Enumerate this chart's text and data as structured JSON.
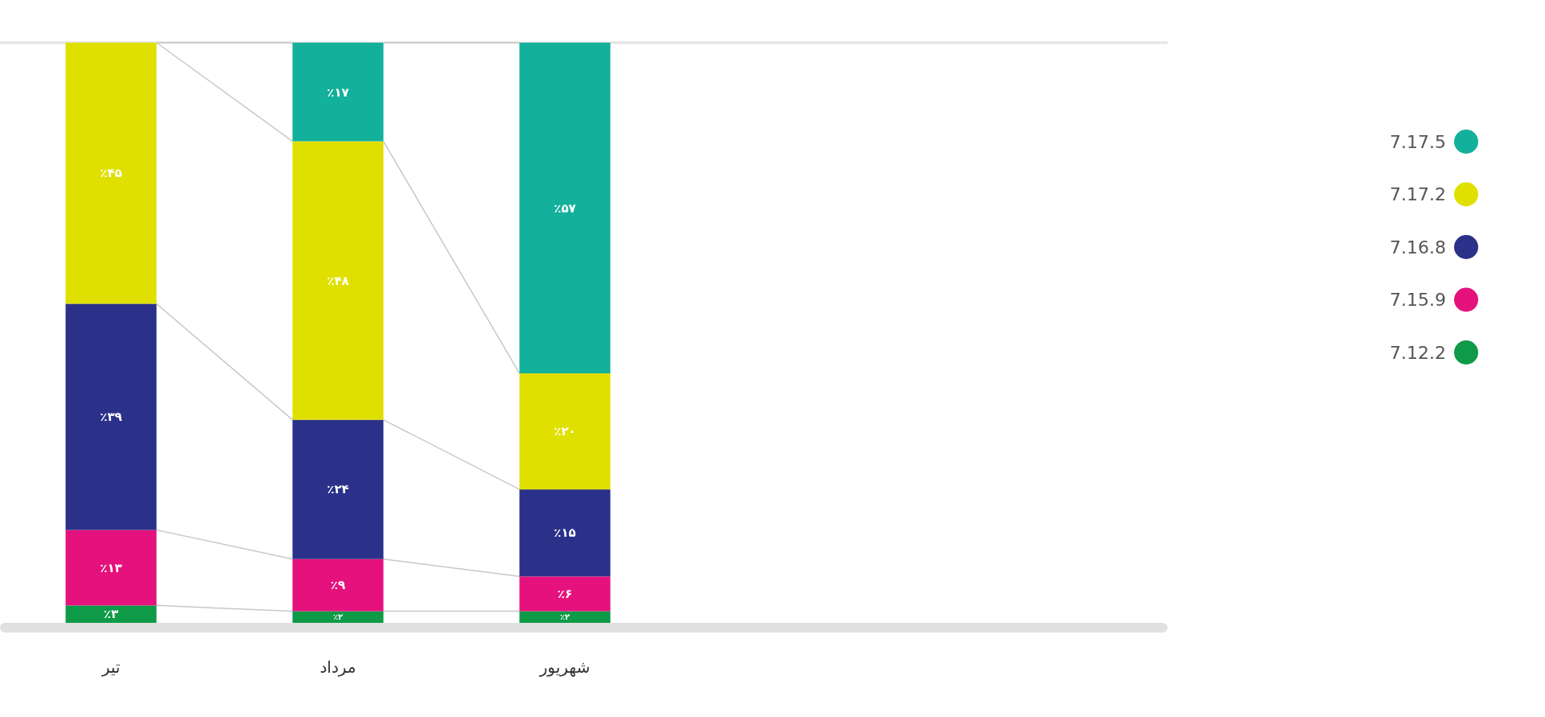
{
  "chart_data": {
    "type": "bar",
    "stacked": true,
    "categories": [
      "تیر",
      "مرداد",
      "شهریور"
    ],
    "ylim": [
      0,
      100
    ],
    "tick_labels": "x",
    "legend": "right",
    "series": [
      {
        "name": "7.12.2",
        "color": "#0e9a47",
        "values": [
          3,
          2,
          2
        ],
        "value_labels": [
          "٪۳",
          "٪۲",
          "٪۲"
        ]
      },
      {
        "name": "7.15.9",
        "color": "#e5127d",
        "values": [
          13,
          9,
          6
        ],
        "value_labels": [
          "٪۱۳",
          "٪۹",
          "٪۶"
        ]
      },
      {
        "name": "7.16.8",
        "color": "#2b3189",
        "values": [
          39,
          24,
          15
        ],
        "value_labels": [
          "٪۳۹",
          "٪۲۴",
          "٪۱۵"
        ]
      },
      {
        "name": "7.17.2",
        "color": "#e0e000",
        "values": [
          45,
          48,
          20
        ],
        "value_labels": [
          "٪۴۵",
          "٪۴۸",
          "٪۲۰"
        ]
      },
      {
        "name": "7.17.5",
        "color": "#13b09b",
        "values": [
          null,
          17,
          57
        ],
        "value_labels": [
          null,
          "٪۱۷",
          "٪۵۷"
        ]
      }
    ]
  }
}
